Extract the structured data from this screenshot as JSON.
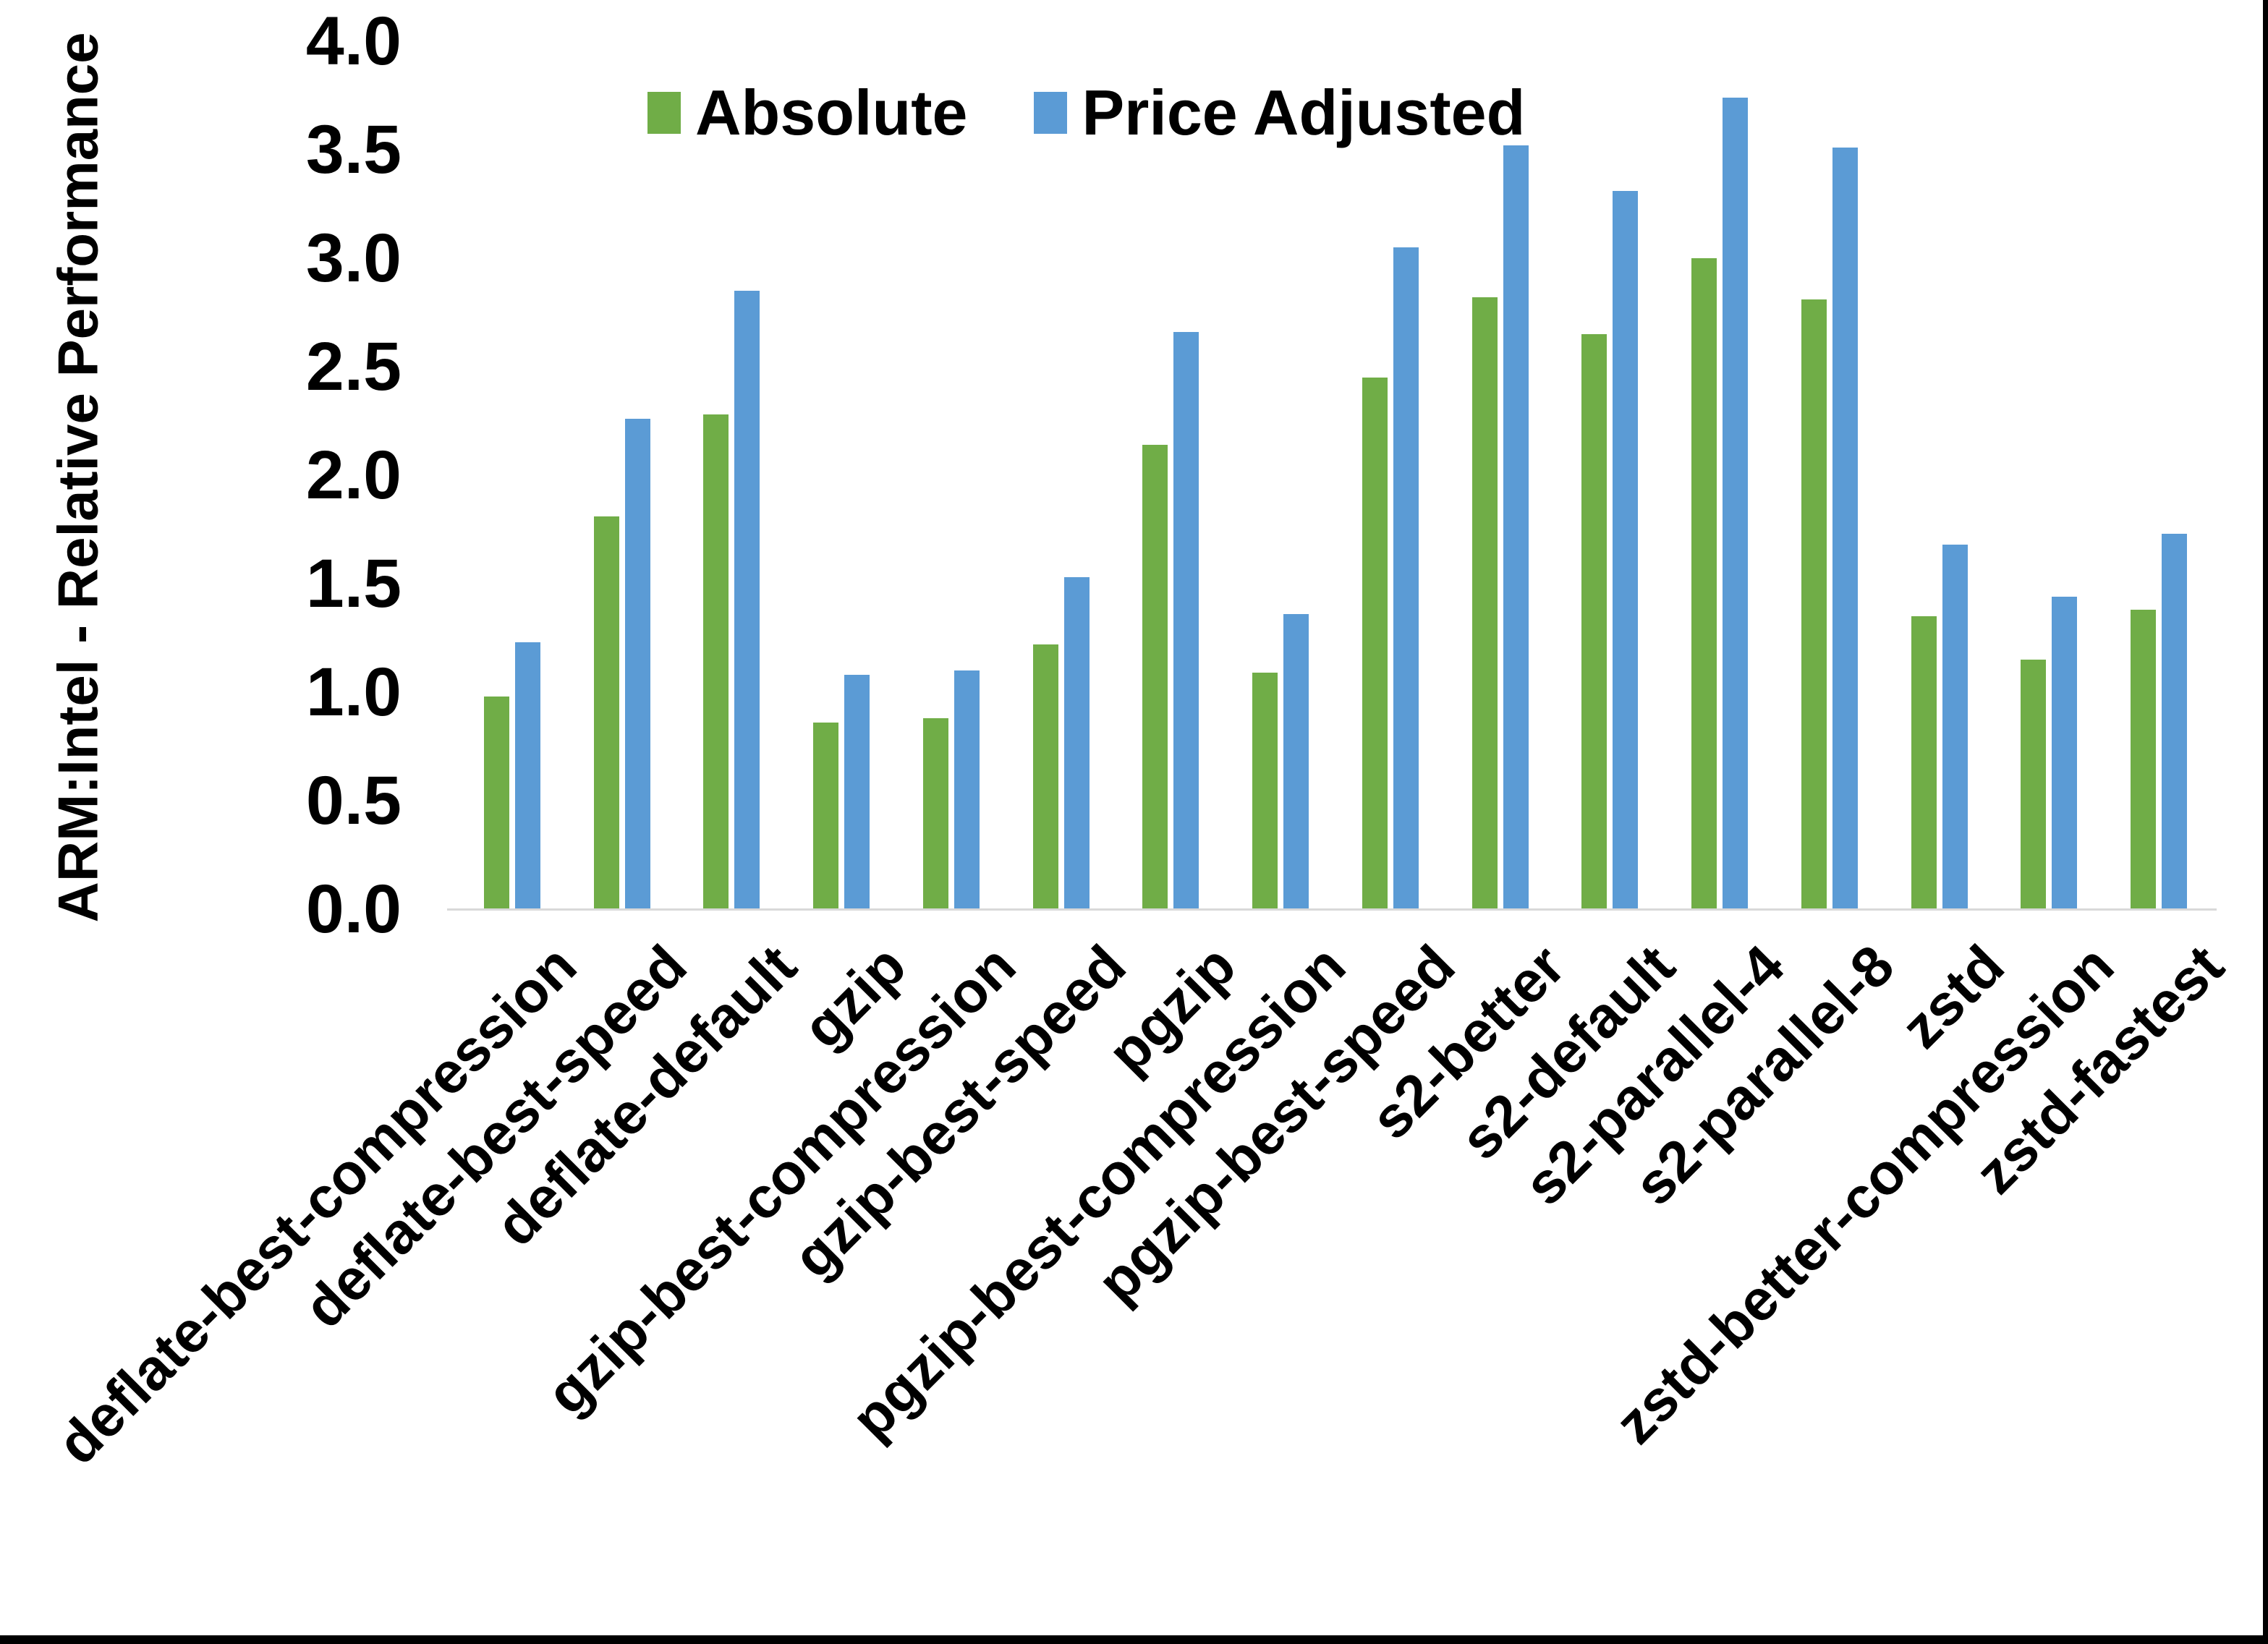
{
  "page": {
    "background": "#ffffff",
    "edge_color": "#000000"
  },
  "legend": {
    "position": "top",
    "items": [
      {
        "label": "Absolute",
        "color": "#70AD47",
        "swatch": "green-square"
      },
      {
        "label": "Price Adjusted",
        "color": "#5B9BD5",
        "swatch": "blue-square"
      }
    ]
  },
  "chart_data": {
    "type": "bar",
    "title": "",
    "xlabel": "",
    "ylabel": "ARM:Intel - Relative Performance",
    "ylim": [
      0.0,
      4.0
    ],
    "ytick_step": 0.5,
    "ytick_labels": [
      "4.0",
      "3.5",
      "3.0",
      "2.5",
      "2.0",
      "1.5",
      "1.0",
      "0.5",
      "0.0"
    ],
    "grid": false,
    "legend_position": "top-center",
    "axis_line_color": "#d9d9d9",
    "categories": [
      "deflate-best-compression",
      "deflate-best-speed",
      "deflate-default",
      "gzip",
      "gzip-best-compression",
      "gzip-best-speed",
      "pgzip",
      "pgzip-best-compression",
      "pgzip-best-speed",
      "s2-better",
      "s2-default",
      "s2-parallel-4",
      "s2-parallel-8",
      "zstd",
      "zstd-better-compression",
      "zstd-fastest"
    ],
    "series": [
      {
        "name": "Absolute",
        "color": "#70AD47",
        "values": [
          0.98,
          1.81,
          2.28,
          0.86,
          0.88,
          1.22,
          2.14,
          1.09,
          2.45,
          2.82,
          2.65,
          3.0,
          2.81,
          1.35,
          1.15,
          1.38
        ]
      },
      {
        "name": "Price Adjusted",
        "color": "#5B9BD5",
        "values": [
          1.23,
          2.26,
          2.85,
          1.08,
          1.1,
          1.53,
          2.66,
          1.36,
          3.05,
          3.52,
          3.31,
          3.74,
          3.51,
          1.68,
          1.44,
          1.73
        ]
      }
    ]
  }
}
